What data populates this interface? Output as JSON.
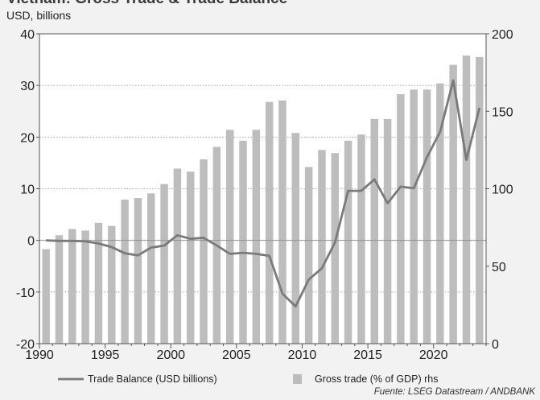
{
  "page": {
    "title": "Vietnam: Gross Trade & Trade Balance",
    "subtitle": "USD, billions",
    "source": "Fuente: LSEG Datastream / ANDBANK"
  },
  "chart_data": {
    "type": "bar",
    "title": "Vietnam: Gross Trade & Trade Balance",
    "subtitle": "USD, billions",
    "x_ticks": [
      1990,
      1995,
      2000,
      2005,
      2010,
      2015,
      2020
    ],
    "xlim": [
      1990,
      2024
    ],
    "y_left": {
      "ylim": [
        -20,
        40
      ],
      "ticks": [
        -20,
        -10,
        0,
        10,
        20,
        30,
        40
      ]
    },
    "y_right": {
      "ylim": [
        0,
        200
      ],
      "ticks": [
        0,
        50,
        100,
        150,
        200
      ]
    },
    "grid": true,
    "legend_position": "bottom",
    "colors": {
      "bars": "#bdbdbd",
      "line": "#7a7a7a",
      "zero_line": "#8a8a8a"
    },
    "series": [
      {
        "name": "Trade Balance (USD billions)",
        "type": "line",
        "axis": "left",
        "x": [
          1990,
          1991,
          1992,
          1993,
          1994,
          1995,
          1996,
          1997,
          1998,
          1999,
          2000,
          2001,
          2002,
          2003,
          2004,
          2005,
          2006,
          2007,
          2008,
          2009,
          2010,
          2011,
          2012,
          2013,
          2014,
          2015,
          2016,
          2017,
          2018,
          2019,
          2020,
          2021,
          2022,
          2023
        ],
        "values": [
          0.0,
          -0.1,
          -0.1,
          -0.2,
          -0.6,
          -1.3,
          -2.5,
          -2.9,
          -1.4,
          -1.0,
          1.0,
          0.3,
          0.5,
          -1.0,
          -2.6,
          -2.4,
          -2.6,
          -3.0,
          -10.3,
          -12.8,
          -7.6,
          -5.4,
          -0.4,
          9.6,
          9.6,
          11.8,
          7.2,
          10.4,
          10.1,
          16.1,
          21.0,
          31.0,
          15.6,
          25.7
        ]
      },
      {
        "name": "Gross trade (% of GDP) rhs",
        "type": "bar",
        "axis": "right",
        "x": [
          1990,
          1991,
          1992,
          1993,
          1994,
          1995,
          1996,
          1997,
          1998,
          1999,
          2000,
          2001,
          2002,
          2003,
          2004,
          2005,
          2006,
          2007,
          2008,
          2009,
          2010,
          2011,
          2012,
          2013,
          2014,
          2015,
          2016,
          2017,
          2018,
          2019,
          2020,
          2021,
          2022,
          2023
        ],
        "values": [
          61,
          70,
          74,
          73,
          78,
          76,
          93,
          94,
          97,
          103,
          113,
          111,
          119,
          127,
          138,
          131,
          138,
          156,
          157,
          136,
          114,
          125,
          123,
          131,
          135,
          145,
          145,
          161,
          164,
          164,
          168,
          180,
          186,
          185
        ]
      }
    ]
  }
}
